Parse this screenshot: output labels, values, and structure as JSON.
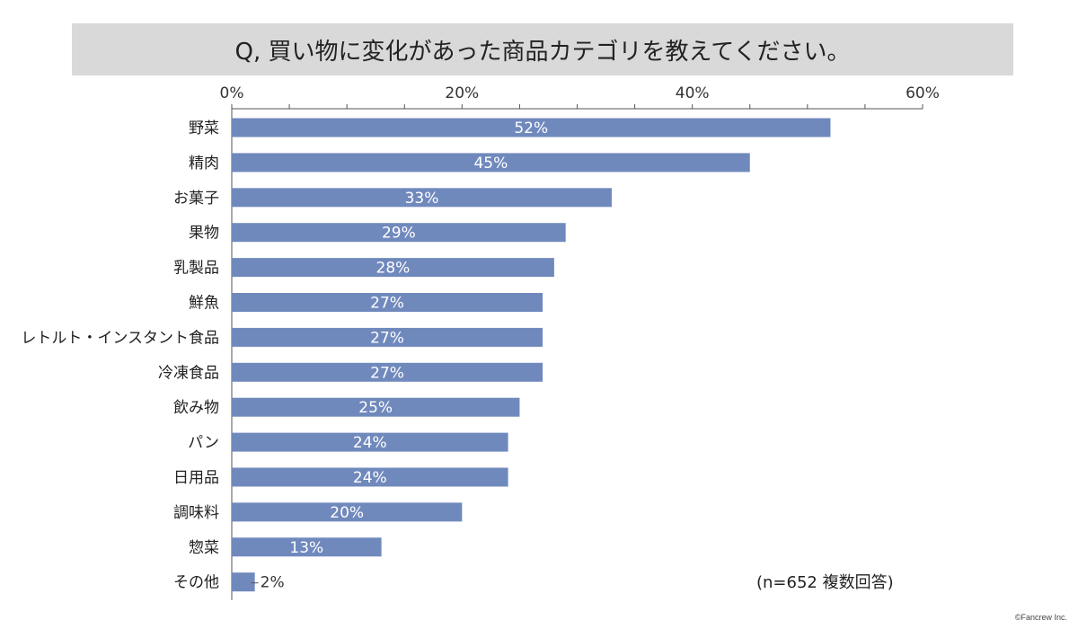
{
  "title": "Q, 買い物に変化があった商品カテゴリを教えてください。",
  "note": "(n=652 複数回答)",
  "copyright": "©Fancrew Inc.",
  "colors": {
    "bar": "#7089bd",
    "title_bg": "#d9d9d9",
    "axis": "#555555"
  },
  "chart_data": {
    "type": "bar",
    "orientation": "horizontal",
    "categories": [
      "野菜",
      "精肉",
      "お菓子",
      "果物",
      "乳製品",
      "鮮魚",
      "レトルト・インスタント食品",
      "冷凍食品",
      "飲み物",
      "パン",
      "日用品",
      "調味料",
      "惣菜",
      "その他"
    ],
    "values": [
      52,
      45,
      33,
      29,
      28,
      27,
      27,
      27,
      25,
      24,
      24,
      20,
      13,
      2
    ],
    "value_labels": [
      "52%",
      "45%",
      "33%",
      "29%",
      "28%",
      "27%",
      "27%",
      "27%",
      "25%",
      "24%",
      "24%",
      "20%",
      "13%",
      "2%"
    ],
    "xlim": [
      0,
      60
    ],
    "xticks": [
      0,
      20,
      40,
      60
    ],
    "xtick_labels": [
      "0%",
      "20%",
      "40%",
      "60%"
    ],
    "x_axis_position": "top",
    "unit": "%"
  }
}
